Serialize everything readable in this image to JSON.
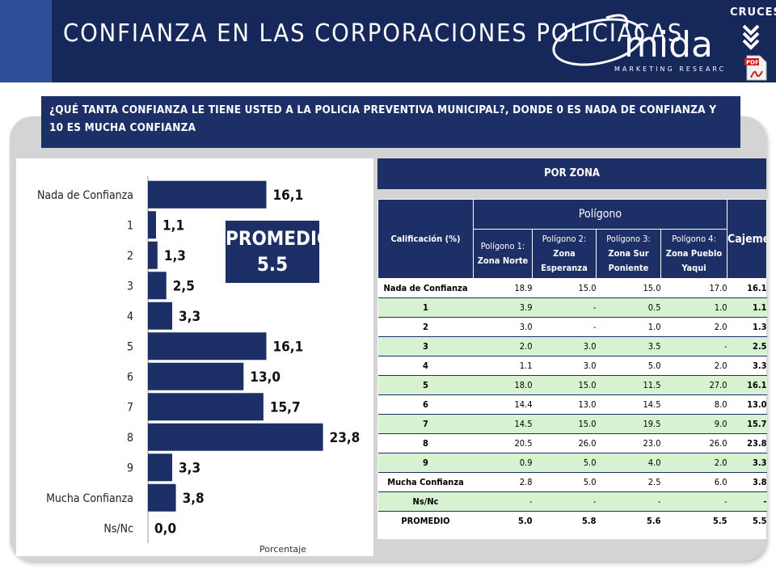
{
  "header": {
    "title": "CONFIANZA EN LAS CORPORACIONES POLICIACAS",
    "logo_text": "mida",
    "logo_sub": "MARKETING RESEARCH",
    "cruces_label": "CRUCES",
    "pdf_label": "PDF"
  },
  "question": "¿QUÉ TANTA CONFIANZA LE TIENE USTED A LA POLICIA PREVENTIVA MUNICIPAL?, DONDE 0 ES NADA DE CONFIANZA Y 10 ES MUCHA CONFIANZA",
  "promedio": {
    "label": "PROMEDIO",
    "value": "5.5"
  },
  "zona_label": "POR ZONA",
  "chart_data": {
    "type": "bar",
    "orientation": "horizontal",
    "categories": [
      "Nada de Confianza",
      "1",
      "2",
      "3",
      "4",
      "5",
      "6",
      "7",
      "8",
      "9",
      "Mucha Confianza",
      "Ns/Nc"
    ],
    "values": [
      16.1,
      1.1,
      1.3,
      2.5,
      3.3,
      16.1,
      13.0,
      15.7,
      23.8,
      3.3,
      3.8,
      0.0
    ],
    "value_labels": [
      "16,1",
      "1,1",
      "1,3",
      "2,5",
      "3,3",
      "16,1",
      "13,0",
      "15,7",
      "23,8",
      "3,3",
      "3,8",
      "0,0"
    ],
    "xlabel": "Porcentaje",
    "ylabel": "",
    "xlim": [
      0,
      30
    ],
    "bar_color": "#1c2f66",
    "grid": false
  },
  "table": {
    "header_calif": "Calificación (%)",
    "header_poligono": "Polígono",
    "header_cajeme": "Cajeme",
    "zones": [
      {
        "prefix": "Polígono 1:",
        "name": "Zona Norte"
      },
      {
        "prefix": "Polígono 2:",
        "name": "Zona Esperanza"
      },
      {
        "prefix": "Polígono 3:",
        "name": "Zona Sur Poniente"
      },
      {
        "prefix": "Polígono 4:",
        "name": "Zona Pueblo Yaqui"
      }
    ],
    "rows": [
      {
        "label": "Nada de Confianza",
        "values": [
          "18.9",
          "15.0",
          "15.0",
          "17.0"
        ],
        "cajeme": "16.1"
      },
      {
        "label": "1",
        "values": [
          "3.9",
          "-",
          "0.5",
          "1.0"
        ],
        "cajeme": "1.1"
      },
      {
        "label": "2",
        "values": [
          "3.0",
          "-",
          "1.0",
          "2.0"
        ],
        "cajeme": "1.3"
      },
      {
        "label": "3",
        "values": [
          "2.0",
          "3.0",
          "3.5",
          "-"
        ],
        "cajeme": "2.5"
      },
      {
        "label": "4",
        "values": [
          "1.1",
          "3.0",
          "5.0",
          "2.0"
        ],
        "cajeme": "3.3"
      },
      {
        "label": "5",
        "values": [
          "18.0",
          "15.0",
          "11.5",
          "27.0"
        ],
        "cajeme": "16.1"
      },
      {
        "label": "6",
        "values": [
          "14.4",
          "13.0",
          "14.5",
          "8.0"
        ],
        "cajeme": "13.0"
      },
      {
        "label": "7",
        "values": [
          "14.5",
          "15.0",
          "19.5",
          "9.0"
        ],
        "cajeme": "15.7"
      },
      {
        "label": "8",
        "values": [
          "20.5",
          "26.0",
          "23.0",
          "26.0"
        ],
        "cajeme": "23.8"
      },
      {
        "label": "9",
        "values": [
          "0.9",
          "5.0",
          "4.0",
          "2.0"
        ],
        "cajeme": "3.3"
      },
      {
        "label": "Mucha Confianza",
        "values": [
          "2.8",
          "5.0",
          "2.5",
          "6.0"
        ],
        "cajeme": "3.8"
      },
      {
        "label": "Ns/Nc",
        "values": [
          "-",
          "-",
          "-",
          "-"
        ],
        "cajeme": "-"
      },
      {
        "label": "PROMEDIO",
        "values": [
          "5.0",
          "5.8",
          "5.6",
          "5.5"
        ],
        "cajeme": "5.5"
      }
    ]
  }
}
